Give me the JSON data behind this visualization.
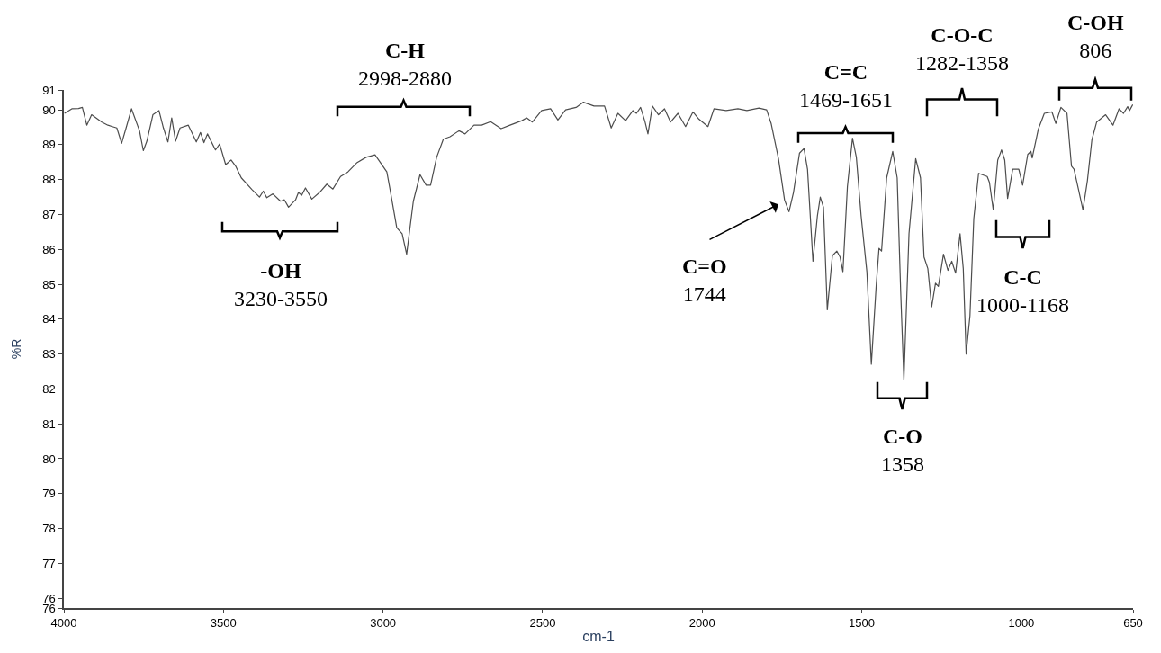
{
  "chart_data": {
    "type": "line",
    "xlabel": "cm-1",
    "ylabel": "%R",
    "xlim": [
      4000,
      650
    ],
    "xticks": [
      4000,
      3500,
      3000,
      2500,
      2000,
      1500,
      1000,
      650
    ],
    "ylim": [
      75.72,
      90.57
    ],
    "yticks": [
      {
        "value": 90.57,
        "label": "91"
      },
      90,
      89,
      88,
      87,
      86,
      85,
      84,
      83,
      82,
      81,
      80,
      79,
      78,
      77,
      76,
      {
        "value": 75.72,
        "label": "76"
      }
    ],
    "marker": "none",
    "line_style": "solid",
    "series": [
      {
        "color": "#4d4d4d",
        "x": [
          3998,
          3975,
          3954,
          3942,
          3928,
          3913,
          3881,
          3862,
          3848,
          3834,
          3819,
          3805,
          3788,
          3763,
          3751,
          3740,
          3721,
          3702,
          3688,
          3674,
          3662,
          3650,
          3636,
          3610,
          3585,
          3572,
          3561,
          3550,
          3525,
          3512,
          3493,
          3476,
          3462,
          3444,
          3411,
          3387,
          3375,
          3364,
          3345,
          3321,
          3309,
          3296,
          3274,
          3265,
          3255,
          3243,
          3223,
          3199,
          3176,
          3157,
          3133,
          3110,
          3081,
          3053,
          3025,
          2988,
          2978,
          2957,
          2940,
          2926,
          2905,
          2884,
          2865,
          2851,
          2832,
          2811,
          2790,
          2762,
          2743,
          2715,
          2691,
          2663,
          2630,
          2602,
          2565,
          2550,
          2532,
          2503,
          2475,
          2452,
          2428,
          2395,
          2372,
          2339,
          2306,
          2285,
          2264,
          2240,
          2217,
          2206,
          2193,
          2179,
          2170,
          2156,
          2137,
          2118,
          2099,
          2076,
          2052,
          2029,
          2010,
          1982,
          1963,
          1925,
          1888,
          1860,
          1822,
          1798,
          1784,
          1761,
          1742,
          1728,
          1714,
          1695,
          1681,
          1670,
          1653,
          1639,
          1630,
          1620,
          1608,
          1592,
          1578,
          1568,
          1559,
          1545,
          1529,
          1517,
          1502,
          1484,
          1470,
          1455,
          1446,
          1438,
          1422,
          1403,
          1389,
          1378,
          1368,
          1352,
          1331,
          1316,
          1305,
          1293,
          1281,
          1269,
          1260,
          1244,
          1230,
          1218,
          1206,
          1192,
          1182,
          1173,
          1161,
          1149,
          1134,
          1107,
          1100,
          1088,
          1074,
          1062,
          1052,
          1043,
          1027,
          1008,
          996,
          980,
          970,
          966,
          947,
          928,
          904,
          892,
          876,
          857,
          843,
          835,
          821,
          807,
          793,
          779,
          764,
          736,
          713,
          694,
          680,
          667,
          661,
          651
        ],
        "values": [
          89.9,
          90.03,
          90.04,
          90.07,
          89.56,
          89.86,
          89.65,
          89.56,
          89.52,
          89.48,
          89.04,
          89.48,
          90.03,
          89.4,
          88.83,
          89.1,
          89.86,
          89.98,
          89.48,
          89.08,
          89.77,
          89.1,
          89.48,
          89.56,
          89.08,
          89.35,
          89.06,
          89.31,
          88.85,
          89.02,
          88.43,
          88.56,
          88.39,
          88.05,
          87.72,
          87.5,
          87.67,
          87.48,
          87.59,
          87.38,
          87.42,
          87.21,
          87.42,
          87.63,
          87.55,
          87.76,
          87.44,
          87.63,
          87.87,
          87.73,
          88.09,
          88.22,
          88.49,
          88.64,
          88.71,
          88.22,
          87.72,
          86.62,
          86.45,
          85.86,
          87.38,
          88.14,
          87.84,
          87.84,
          88.64,
          89.16,
          89.23,
          89.4,
          89.31,
          89.56,
          89.56,
          89.66,
          89.46,
          89.56,
          89.69,
          89.77,
          89.65,
          89.98,
          90.03,
          89.71,
          90.0,
          90.07,
          90.22,
          90.11,
          90.11,
          89.48,
          89.9,
          89.69,
          89.98,
          89.9,
          90.07,
          89.65,
          89.31,
          90.11,
          89.86,
          90.03,
          89.65,
          89.9,
          89.52,
          89.94,
          89.73,
          89.52,
          90.03,
          89.98,
          90.03,
          89.98,
          90.05,
          90.0,
          89.61,
          88.6,
          87.42,
          87.08,
          87.63,
          88.76,
          88.89,
          88.3,
          85.66,
          86.96,
          87.5,
          87.21,
          84.27,
          85.82,
          85.95,
          85.78,
          85.36,
          87.8,
          89.19,
          88.64,
          86.96,
          85.36,
          82.71,
          84.94,
          86.03,
          85.95,
          88.05,
          88.81,
          88.05,
          84.77,
          82.25,
          86.45,
          88.6,
          88.05,
          85.78,
          85.45,
          84.35,
          85.03,
          84.94,
          85.86,
          85.4,
          85.66,
          85.32,
          86.45,
          85.45,
          83.0,
          84.1,
          86.88,
          88.18,
          88.09,
          87.92,
          87.13,
          88.56,
          88.85,
          88.56,
          87.46,
          88.3,
          88.3,
          87.84,
          88.72,
          88.81,
          88.62,
          89.44,
          89.9,
          89.94,
          89.61,
          90.07,
          89.9,
          88.39,
          88.3,
          87.72,
          87.13,
          87.97,
          89.14,
          89.65,
          89.86,
          89.56,
          90.03,
          89.9,
          90.09,
          89.98,
          90.15
        ]
      }
    ],
    "annotations": [
      "C-H\n2998-2880",
      "-OH\n3230-3550",
      "C=O\n1744",
      "C=C\n1469-1651",
      "C-O-C\n1282-1358",
      "C-OH\n806",
      "C-C\n1000-1168",
      "C-O\n1358"
    ]
  }
}
